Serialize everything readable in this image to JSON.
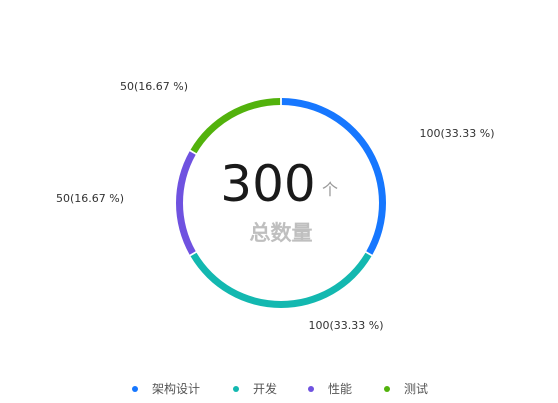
{
  "chart_data": {
    "type": "pie",
    "donut": true,
    "center": {
      "value": "300",
      "unit": "个",
      "subtitle": "总数量"
    },
    "slices": [
      {
        "name": "架构设计",
        "value": 100,
        "label": "100(33.33 %)",
        "color": "#1677ff"
      },
      {
        "name": "开发",
        "value": 100,
        "label": "100(33.33 %)",
        "color": "#13b8b0"
      },
      {
        "name": "性能",
        "value": 50,
        "label": "50(16.67 %)",
        "color": "#6f52e0"
      },
      {
        "name": "测试",
        "value": 50,
        "label": "50(16.67 %)",
        "color": "#52b20c"
      }
    ],
    "legend_position": "bottom"
  }
}
